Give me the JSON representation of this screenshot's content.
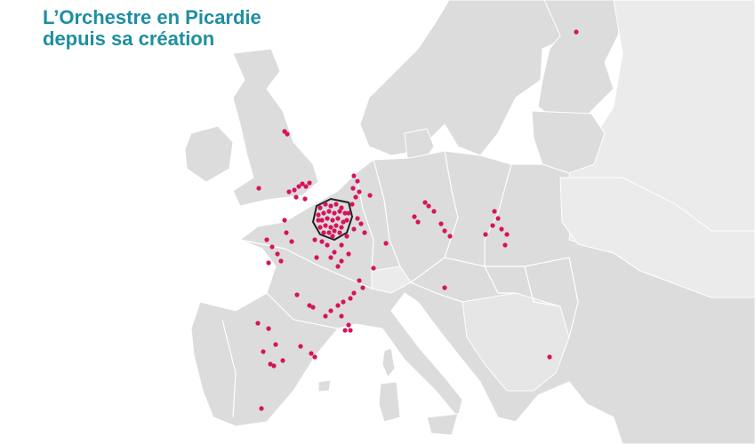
{
  "title": {
    "line1": "L’Orchestre en Picardie",
    "line2": "depuis sa création"
  },
  "colors": {
    "sea": "#ffffff",
    "land_primary": "#dcdcdc",
    "land_secondary": "#ebebeb",
    "borders": "#ffffff",
    "picardie_outline": "#222222",
    "concert_marker": "#d6135d",
    "title": "#1e8fa0"
  },
  "map": {
    "region": "Europe",
    "highlighted_region": "Picardie",
    "marker_meaning": "concert venue",
    "marker_shape": "dot",
    "dense_cluster_in": "Picardie"
  }
}
